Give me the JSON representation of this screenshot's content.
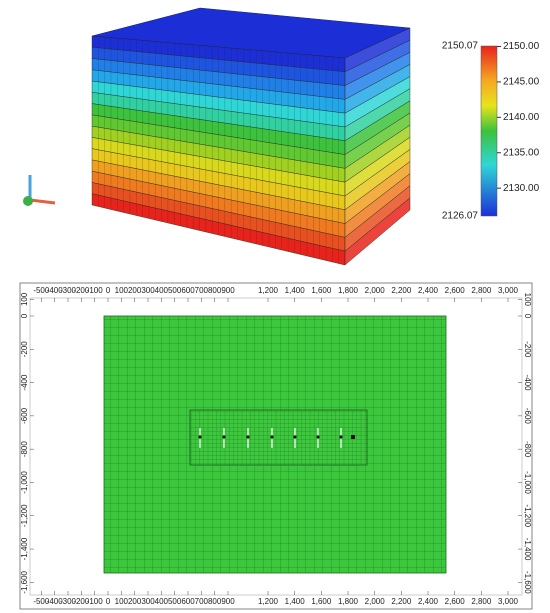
{
  "colorbar": {
    "lim": [
      2126.07,
      2150.07
    ],
    "ticks": [
      {
        "value": 2150,
        "label": "2150.00"
      },
      {
        "value": 2145,
        "label": "2145.00"
      },
      {
        "value": 2140,
        "label": "2140.00"
      },
      {
        "value": 2135,
        "label": "2135.00"
      },
      {
        "value": 2130,
        "label": "2130.00"
      }
    ]
  },
  "map": {
    "xlim": [
      -585,
      3105
    ],
    "ylim": [
      -1676,
      108
    ],
    "xticks": [
      -500,
      -400,
      -300,
      -200,
      -100,
      0,
      100,
      200,
      300,
      400,
      500,
      600,
      700,
      800,
      900,
      {
        "value": 1200,
        "label": "1,200"
      },
      {
        "value": 1400,
        "label": "1,400"
      },
      {
        "value": 1600,
        "label": "1,600"
      },
      {
        "value": 1800,
        "label": "1,800"
      },
      {
        "value": 2000,
        "label": "2,000"
      },
      {
        "value": 2200,
        "label": "2,200"
      },
      {
        "value": 2400,
        "label": "2,400"
      },
      {
        "value": 2600,
        "label": "2,600"
      },
      {
        "value": 2800,
        "label": "2,800"
      },
      {
        "value": 3000,
        "label": "3,000"
      }
    ],
    "yticks": [
      100,
      0,
      -200,
      -400,
      -600,
      -800,
      {
        "value": -1000,
        "label": "-1,000"
      },
      {
        "value": -1200,
        "label": "-1,200"
      },
      {
        "value": -1400,
        "label": "-1,400"
      },
      {
        "value": -1600,
        "label": "-1,600"
      }
    ]
  }
}
